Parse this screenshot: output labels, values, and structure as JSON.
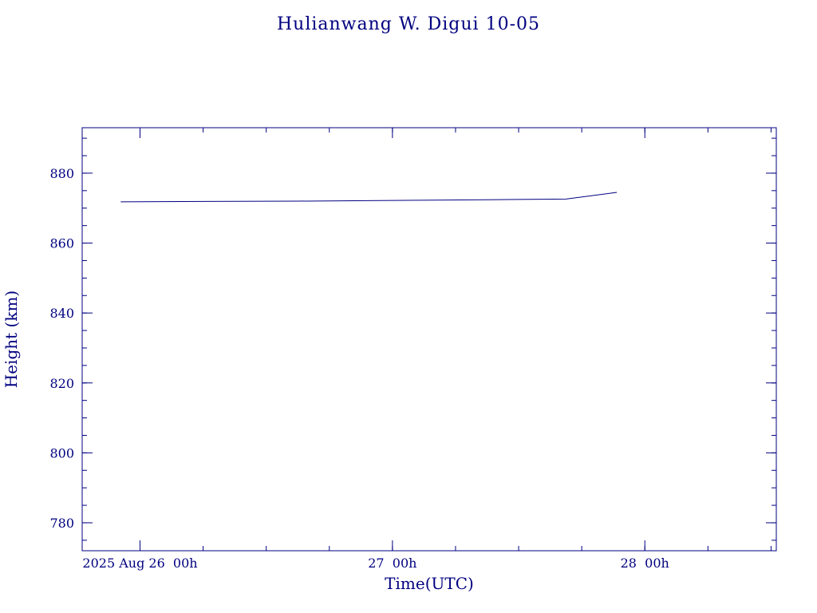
{
  "chart_data": {
    "type": "line",
    "title": "Hulianwang W. Digui 10-05",
    "xlabel": "Time(UTC)",
    "ylabel": "Height (km)",
    "xlim": [
      "2025-08-25T18:30Z",
      "2025-08-28T12:30Z"
    ],
    "ylim": [
      772,
      893
    ],
    "x_major_ticks": [
      "2025-08-26T00:00Z",
      "2025-08-27T00:00Z",
      "2025-08-28T00:00Z"
    ],
    "x_tick_labels": [
      "2025 Aug 26  00h",
      "27  00h",
      "28  00h"
    ],
    "x_minor_tick_hours": 6,
    "y_major_ticks": [
      780,
      800,
      820,
      840,
      860,
      880
    ],
    "y_tick_labels": [
      "780",
      "800",
      "820",
      "840",
      "860",
      "880"
    ],
    "y_minor_tick_step": 5,
    "grid": false,
    "color": "#000080",
    "series": [
      {
        "x": [
          "2025-08-25T22:10Z",
          "2025-08-26T06:00Z",
          "2025-08-26T15:00Z",
          "2025-08-27T00:00Z",
          "2025-08-27T09:00Z",
          "2025-08-27T16:30Z",
          "2025-08-27T21:20Z"
        ],
        "y": [
          871.8,
          871.9,
          872.0,
          872.2,
          872.4,
          872.6,
          874.5
        ]
      }
    ]
  }
}
